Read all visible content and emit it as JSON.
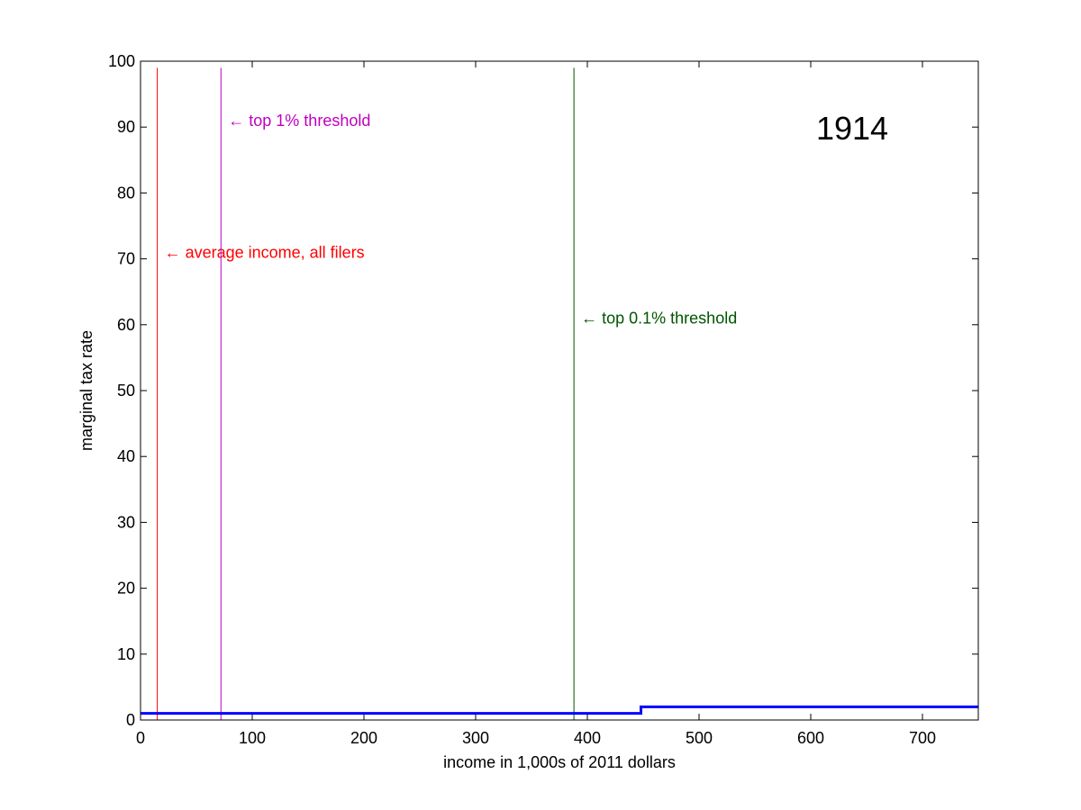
{
  "chart_data": {
    "type": "line",
    "title": "",
    "year_label": "1914",
    "xlabel": "income in 1,000s of 2011 dollars",
    "ylabel": "marginal tax rate",
    "xlim": [
      0,
      750
    ],
    "ylim": [
      0,
      100
    ],
    "xticks": [
      0,
      100,
      200,
      300,
      400,
      500,
      600,
      700
    ],
    "yticks": [
      0,
      10,
      20,
      30,
      40,
      50,
      60,
      70,
      80,
      90,
      100
    ],
    "grid": false,
    "series": [
      {
        "color": "#0000ff",
        "x": [
          0,
          448,
          448,
          750
        ],
        "y": [
          1,
          1,
          2,
          2
        ]
      }
    ],
    "markers": [
      {
        "x": 15,
        "label": "← average income, all filers",
        "color": "#ff0000",
        "label_y": 71
      },
      {
        "x": 72,
        "label": "← top 1% threshold",
        "color": "#bf00bf",
        "label_y": 91
      },
      {
        "x": 388,
        "label": "← top 0.1% threshold",
        "color": "#005500",
        "label_y": 61
      }
    ]
  }
}
